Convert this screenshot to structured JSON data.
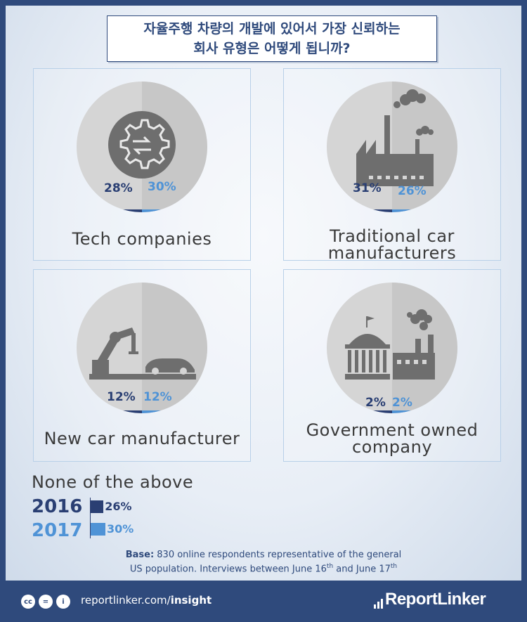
{
  "title": {
    "line1": "자율주행 차량의 개발에 있어서 가장 신뢰하는",
    "line2": "회사 유형은 어떻게 됩니까?"
  },
  "colors": {
    "year_2016": "#2a3f73",
    "year_2017": "#4f93d6",
    "circle": "#d5d5d5",
    "icon": "#6e6e6e"
  },
  "cards": [
    {
      "label_lines": [
        "Tech companies"
      ],
      "icon": "gear-icon",
      "v2016": "28%",
      "v2017": "30%"
    },
    {
      "label_lines": [
        "Traditional car",
        "manufacturers"
      ],
      "icon": "factory-icon",
      "v2016": "31%",
      "v2017": "26%"
    },
    {
      "label_lines": [
        "New car manufacturer"
      ],
      "icon": "robot-arm-car-icon",
      "v2016": "12%",
      "v2017": "12%"
    },
    {
      "label_lines": [
        "Government owned",
        "company"
      ],
      "icon": "government-building-icon",
      "v2016": "2%",
      "v2017": "2%"
    }
  ],
  "none": {
    "label": "None of the above",
    "y2016": "2016",
    "y2017": "2017",
    "v2016": "26%",
    "v2017": "30%"
  },
  "base": {
    "bold": "Base:",
    "line1": " 830 online respondents representative of the general",
    "line2_a": "US population. Interviews between June 16",
    "sup1": "th",
    "line2_b": " and June 17",
    "sup2": "th"
  },
  "footer": {
    "site": "reportlinker.com/",
    "site_bold": "insight",
    "brand": "ReportLinker",
    "cc": "cc",
    "nd": "=",
    "by": "i"
  },
  "chart_data": {
    "type": "bar",
    "categories": [
      "Tech companies",
      "Traditional car manufacturers",
      "New car manufacturer",
      "Government owned company",
      "None of the above"
    ],
    "series": [
      {
        "name": "2016",
        "values": [
          28,
          31,
          12,
          2,
          26
        ]
      },
      {
        "name": "2017",
        "values": [
          30,
          26,
          12,
          2,
          30
        ]
      }
    ],
    "title": "자율주행 차량의 개발에 있어서 가장 신뢰하는 회사 유형은 어떻게 됩니까?",
    "unit": "%"
  }
}
